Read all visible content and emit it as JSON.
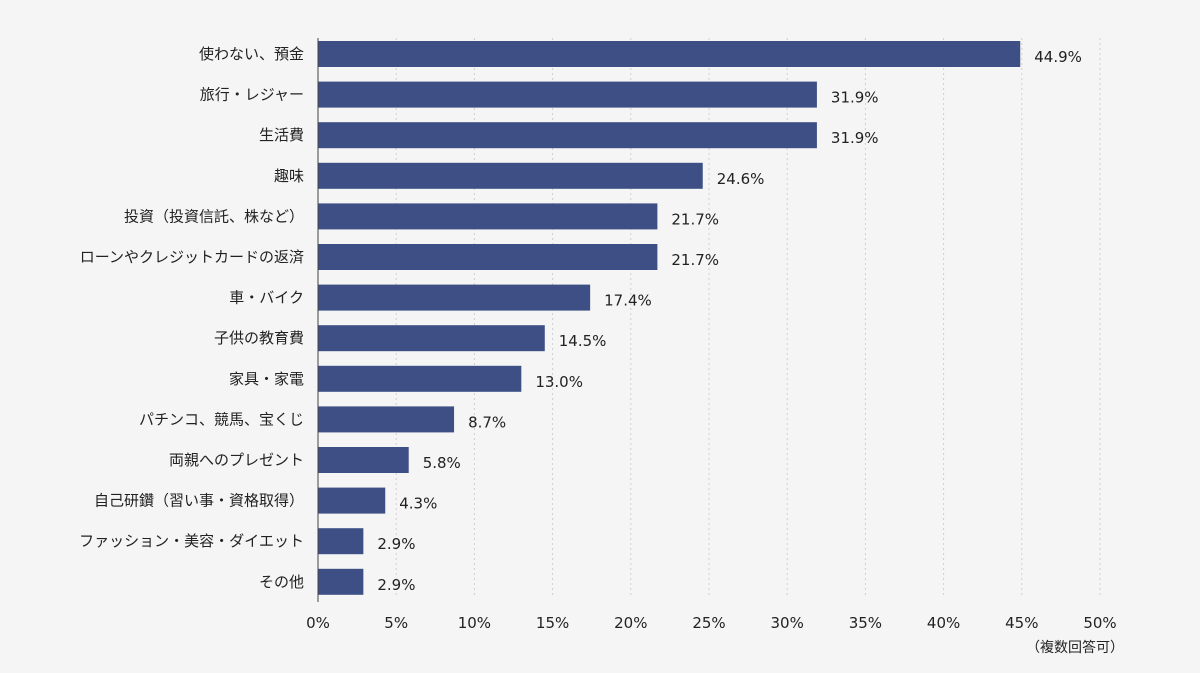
{
  "chart_data": {
    "type": "bar",
    "orientation": "horizontal",
    "categories": [
      "使わない、預金",
      "旅行・レジャー",
      "生活費",
      "趣味",
      "投資（投資信託、株など）",
      "ローンやクレジットカードの返済",
      "車・バイク",
      "子供の教育費",
      "家具・家電",
      "パチンコ、競馬、宝くじ",
      "両親へのプレゼント",
      "自己研鑽（習い事・資格取得）",
      "ファッション・美容・ダイエット",
      "その他"
    ],
    "values": [
      44.9,
      31.9,
      31.9,
      24.6,
      21.7,
      21.7,
      17.4,
      14.5,
      13.0,
      8.7,
      5.8,
      4.3,
      2.9,
      2.9
    ],
    "value_labels": [
      "44.9%",
      "31.9%",
      "31.9%",
      "24.6%",
      "21.7%",
      "21.7%",
      "17.4%",
      "14.5%",
      "13.0%",
      "8.7%",
      "5.8%",
      "4.3%",
      "2.9%",
      "2.9%"
    ],
    "xlim": [
      0,
      50
    ],
    "xticks": [
      0,
      5,
      10,
      15,
      20,
      25,
      30,
      35,
      40,
      45,
      50
    ],
    "xtick_labels": [
      "0%",
      "5%",
      "10%",
      "15%",
      "20%",
      "25%",
      "30%",
      "35%",
      "40%",
      "45%",
      "50%"
    ],
    "note": "（複数回答可）",
    "grid": "vertical-dotted",
    "bar_color": "#3d4f84",
    "grid_color": "#cfcfcf",
    "axis_color": "#444444"
  }
}
